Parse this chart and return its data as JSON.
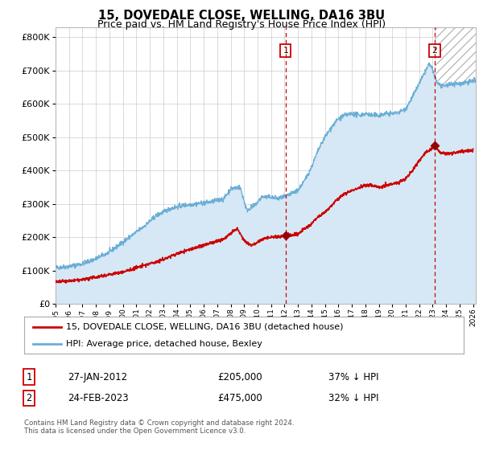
{
  "title": "15, DOVEDALE CLOSE, WELLING, DA16 3BU",
  "subtitle": "Price paid vs. HM Land Registry's House Price Index (HPI)",
  "ylim": [
    0,
    830000
  ],
  "yticks": [
    0,
    100000,
    200000,
    300000,
    400000,
    500000,
    600000,
    700000,
    800000
  ],
  "xlim_start": 1995.0,
  "xlim_end": 2026.2,
  "hpi_color": "#6baed6",
  "hpi_fill_color": "#d6e8f5",
  "price_color": "#cc0000",
  "marker_color": "#990000",
  "vline_color": "#cc0000",
  "grid_color": "#cccccc",
  "bg_color": "#ffffff",
  "plot_bg_color": "#ffffff",
  "transaction1_date": 2012.074,
  "transaction1_price": 205000,
  "transaction2_date": 2023.14,
  "transaction2_price": 475000,
  "legend_line1": "15, DOVEDALE CLOSE, WELLING, DA16 3BU (detached house)",
  "legend_line2": "HPI: Average price, detached house, Bexley",
  "note1_date": "27-JAN-2012",
  "note1_price": "£205,000",
  "note1_hpi": "37% ↓ HPI",
  "note2_date": "24-FEB-2023",
  "note2_price": "£475,000",
  "note2_hpi": "32% ↓ HPI",
  "footer": "Contains HM Land Registry data © Crown copyright and database right 2024.\nThis data is licensed under the Open Government Licence v3.0.",
  "title_fontsize": 10.5,
  "subtitle_fontsize": 9.0,
  "label_fontsize": 8.5,
  "note_fontsize": 8.5
}
